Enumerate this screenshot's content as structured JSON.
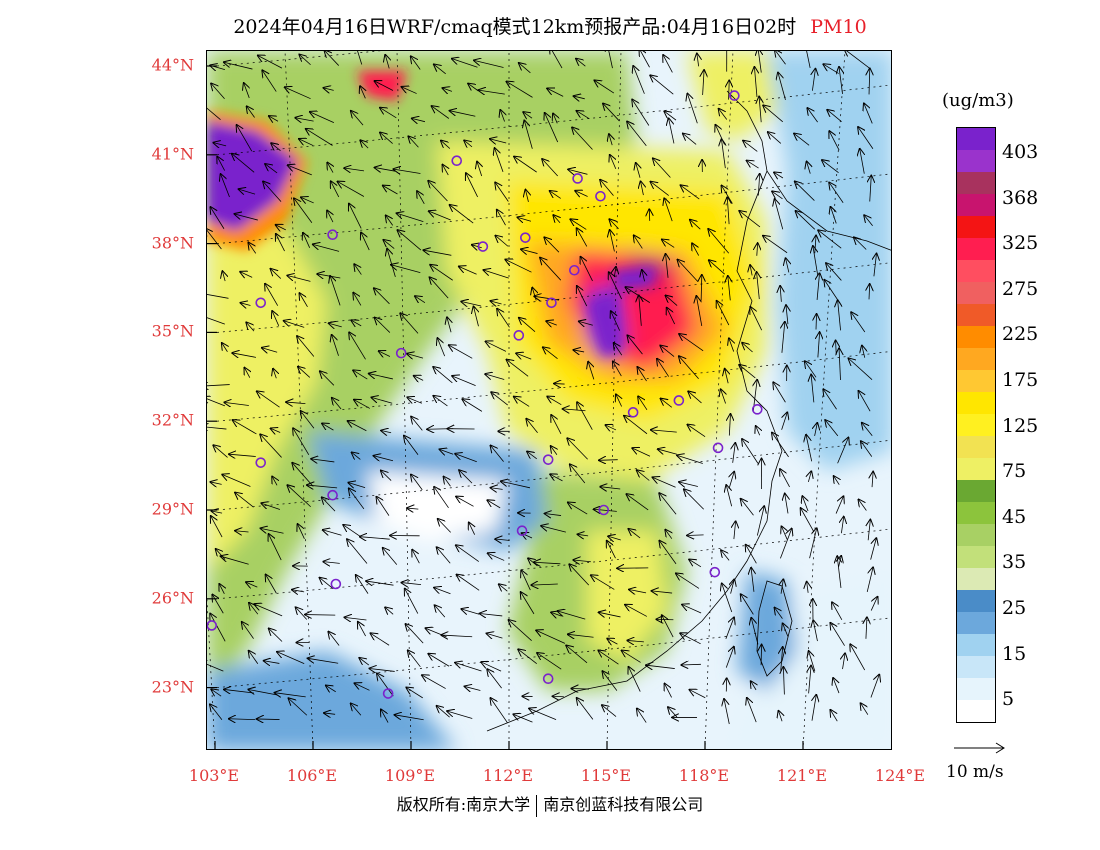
{
  "header": {
    "title": "2024年04月16日WRF/cmaq模式12km预报产品:04月16日02时",
    "product": "PM10"
  },
  "axes": {
    "lat_labels": [
      "44°N",
      "41°N",
      "38°N",
      "35°N",
      "32°N",
      "29°N",
      "26°N",
      "23°N"
    ],
    "lon_labels": [
      "103°E",
      "106°E",
      "109°E",
      "112°E",
      "115°E",
      "118°E",
      "121°E",
      "124°E"
    ]
  },
  "colorbar": {
    "unit": "(ug/m3)",
    "tick_labels": [
      "403",
      "368",
      "325",
      "275",
      "225",
      "175",
      "125",
      "75",
      "45",
      "35",
      "25",
      "15",
      "5"
    ],
    "colors": [
      "#7a22cc",
      "#9a33cc",
      "#a8325e",
      "#c8146e",
      "#f41414",
      "#ff1e50",
      "#ff4e60",
      "#f06060",
      "#f05a28",
      "#ff8c00",
      "#ffa820",
      "#ffc832",
      "#ffe600",
      "#fff020",
      "#f2e252",
      "#eef064",
      "#6aa832",
      "#8cc43c",
      "#a8d064",
      "#c2e07a",
      "#dceab4",
      "#4a8cc8",
      "#6ca8dc",
      "#a0d2f0",
      "#c8e6f8",
      "#e6f4fc",
      "#ffffff"
    ]
  },
  "wind_reference": {
    "label": "10 m/s"
  },
  "cities": [
    {
      "lon": 118.9,
      "lat": 43.0
    },
    {
      "lon": 110.4,
      "lat": 40.8
    },
    {
      "lon": 114.1,
      "lat": 40.2
    },
    {
      "lon": 114.8,
      "lat": 39.6
    },
    {
      "lon": 106.6,
      "lat": 38.3
    },
    {
      "lon": 111.2,
      "lat": 37.9
    },
    {
      "lon": 112.5,
      "lat": 38.2
    },
    {
      "lon": 114.0,
      "lat": 37.1
    },
    {
      "lon": 113.3,
      "lat": 36.0
    },
    {
      "lon": 104.4,
      "lat": 36.0
    },
    {
      "lon": 112.3,
      "lat": 34.9
    },
    {
      "lon": 108.7,
      "lat": 34.3
    },
    {
      "lon": 115.8,
      "lat": 32.3
    },
    {
      "lon": 117.2,
      "lat": 32.7
    },
    {
      "lon": 119.6,
      "lat": 32.4
    },
    {
      "lon": 118.4,
      "lat": 31.1
    },
    {
      "lon": 113.2,
      "lat": 30.7
    },
    {
      "lon": 104.4,
      "lat": 30.6
    },
    {
      "lon": 106.6,
      "lat": 29.5
    },
    {
      "lon": 114.9,
      "lat": 29.0
    },
    {
      "lon": 112.4,
      "lat": 28.3
    },
    {
      "lon": 106.7,
      "lat": 26.5
    },
    {
      "lon": 118.3,
      "lat": 26.9
    },
    {
      "lon": 102.9,
      "lat": 25.1
    },
    {
      "lon": 113.2,
      "lat": 23.3
    },
    {
      "lon": 108.3,
      "lat": 22.8
    }
  ],
  "copyright": {
    "left": "版权所有:南京大学",
    "right": "南京创蓝科技有限公司"
  }
}
